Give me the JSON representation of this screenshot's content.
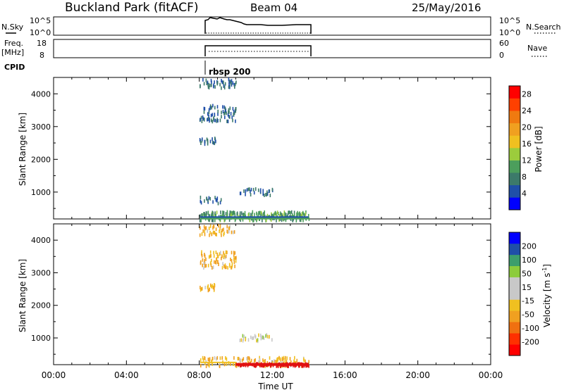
{
  "header": {
    "title": "Buckland Park (fitACF)",
    "beam": "Beam 04",
    "date": "25/May/2016"
  },
  "left_labels": {
    "nsky": "N.Sky",
    "freq": "Freq.",
    "freq_unit": "[MHz]",
    "cpid": "CPID"
  },
  "right_labels": {
    "nsearch": "N.Search",
    "nave": "Nave"
  },
  "cpid_label": "rbsp 200",
  "nsky_ticks": [
    "10^5",
    "10^0"
  ],
  "nsky_right_ticks": [
    "10^5",
    "10^0"
  ],
  "freq_ticks": [
    "18",
    "8"
  ],
  "nave_ticks": [
    "60",
    "0"
  ],
  "time_ticks": [
    "00:00",
    "04:00",
    "08:00",
    "12:00",
    "16:00",
    "20:00",
    "00:00"
  ],
  "xlabel": "Time UT",
  "power_colorbar": {
    "label": "Power [dB]",
    "ticks": [
      "4",
      "8",
      "12",
      "16",
      "20",
      "24",
      "28"
    ],
    "colors": [
      "#0000ff",
      "#1f4fa8",
      "#3c7a6a",
      "#4c9e5c",
      "#9ccc3c",
      "#f0c020",
      "#f0a020",
      "#f07a10",
      "#ff4000",
      "#ff0000"
    ]
  },
  "velocity_colorbar": {
    "label": "Velocity [m s",
    "label_sup": "-1",
    "label_end": "]",
    "ticks": [
      "200",
      "100",
      "50",
      "15",
      "-15",
      "-50",
      "-100",
      "-200"
    ],
    "colors": [
      "#ff0000",
      "#ff3000",
      "#f07010",
      "#f0a020",
      "#f0c020",
      "#c8c8c8",
      "#c8c8c8",
      "#8ccc3c",
      "#3c9e6c",
      "#1f4fa8",
      "#0000ff"
    ]
  },
  "chart_data": [
    {
      "type": "scatter",
      "title": "",
      "xlabel": "Time UT",
      "ylabel": "Slant Range [km]",
      "xlim": [
        0,
        24
      ],
      "ylim": [
        180,
        4500
      ],
      "yticks": [
        1000,
        2000,
        3000,
        4000
      ],
      "colorbar": "Power [dB]",
      "series": [
        {
          "x": [
            8.0,
            10.0
          ],
          "y": [
            4200,
            4500
          ],
          "value": 6
        },
        {
          "x": [
            8.0,
            10.0
          ],
          "y": [
            3200,
            3700
          ],
          "value": 6
        },
        {
          "x": [
            8.0,
            8.9
          ],
          "y": [
            2500,
            2700
          ],
          "value": 6
        },
        {
          "x": [
            8.0,
            9.2
          ],
          "y": [
            700,
            900
          ],
          "value": 6
        },
        {
          "x": [
            10.2,
            12.0
          ],
          "y": [
            950,
            1150
          ],
          "value": 6
        },
        {
          "x": [
            8.0,
            14.0
          ],
          "y": [
            180,
            450
          ],
          "value": 10
        }
      ]
    },
    {
      "type": "scatter",
      "title": "",
      "xlabel": "Time UT",
      "ylabel": "Slant Range [km]",
      "xlim": [
        0,
        24
      ],
      "ylim": [
        180,
        4500
      ],
      "yticks": [
        1000,
        2000,
        3000,
        4000
      ],
      "colorbar": "Velocity [m s-1]",
      "series": [
        {
          "x": [
            8.0,
            10.0
          ],
          "y": [
            4200,
            4500
          ],
          "value": -30
        },
        {
          "x": [
            8.0,
            10.0
          ],
          "y": [
            3200,
            3700
          ],
          "value": -30
        },
        {
          "x": [
            8.0,
            8.9
          ],
          "y": [
            2500,
            2700
          ],
          "value": -30
        },
        {
          "x": [
            10.2,
            12.0
          ],
          "y": [
            950,
            1150
          ],
          "value": 0
        },
        {
          "x": [
            8.0,
            14.0
          ],
          "y": [
            180,
            450
          ],
          "value": -30
        },
        {
          "x": [
            10.0,
            14.0
          ],
          "y": [
            180,
            260
          ],
          "value": -200
        }
      ]
    }
  ]
}
